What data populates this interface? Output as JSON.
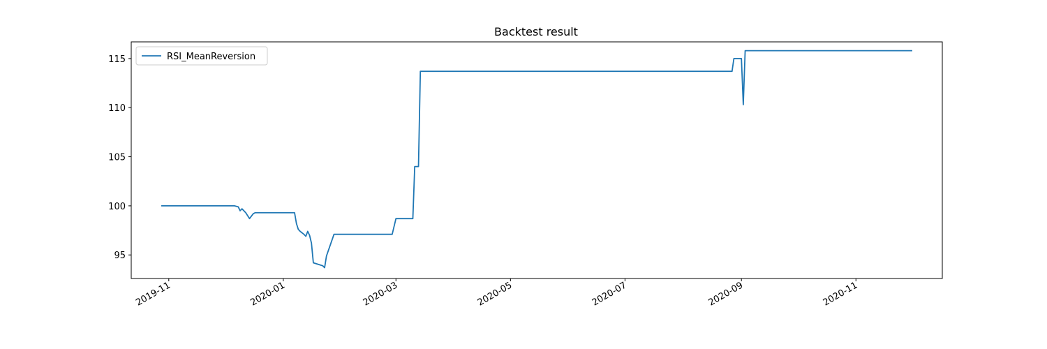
{
  "chart_data": {
    "type": "line",
    "title": "Backtest result",
    "xlabel": "",
    "ylabel": "",
    "x_axis_type": "date",
    "xlim": [
      "2019-10-12",
      "2020-12-17"
    ],
    "ylim": [
      92.6,
      116.7
    ],
    "grid": false,
    "legend_position": "top-left",
    "x_ticks": [
      "2019-11-01",
      "2020-01-01",
      "2020-03-01",
      "2020-05-01",
      "2020-07-01",
      "2020-09-01",
      "2020-11-01"
    ],
    "x_tick_labels": [
      "2019-11",
      "2020-01",
      "2020-03",
      "2020-05",
      "2020-07",
      "2020-09",
      "2020-11"
    ],
    "y_ticks": [
      95,
      100,
      105,
      110,
      115
    ],
    "y_tick_labels": [
      "95",
      "100",
      "105",
      "110",
      "115"
    ],
    "series": [
      {
        "name": "RSI_MeanReversion",
        "color": "#1f77b4",
        "points": [
          [
            "2019-10-28",
            100.0
          ],
          [
            "2019-12-06",
            100.0
          ],
          [
            "2019-12-08",
            99.9
          ],
          [
            "2019-12-09",
            99.5
          ],
          [
            "2019-12-10",
            99.7
          ],
          [
            "2019-12-12",
            99.3
          ],
          [
            "2019-12-14",
            98.7
          ],
          [
            "2019-12-16",
            99.2
          ],
          [
            "2019-12-17",
            99.3
          ],
          [
            "2020-01-07",
            99.3
          ],
          [
            "2020-01-08",
            98.2
          ],
          [
            "2020-01-09",
            97.6
          ],
          [
            "2020-01-10",
            97.4
          ],
          [
            "2020-01-12",
            97.1
          ],
          [
            "2020-01-13",
            96.9
          ],
          [
            "2020-01-14",
            97.4
          ],
          [
            "2020-01-15",
            97.0
          ],
          [
            "2020-01-16",
            96.2
          ],
          [
            "2020-01-17",
            94.2
          ],
          [
            "2020-01-22",
            93.9
          ],
          [
            "2020-01-23",
            93.7
          ],
          [
            "2020-01-24",
            94.9
          ],
          [
            "2020-01-28",
            97.1
          ],
          [
            "2020-02-28",
            97.1
          ],
          [
            "2020-03-01",
            98.7
          ],
          [
            "2020-03-10",
            98.7
          ],
          [
            "2020-03-11",
            104.0
          ],
          [
            "2020-03-13",
            104.0
          ],
          [
            "2020-03-14",
            113.7
          ],
          [
            "2020-08-27",
            113.7
          ],
          [
            "2020-08-28",
            115.0
          ],
          [
            "2020-09-01",
            115.0
          ],
          [
            "2020-09-02",
            110.3
          ],
          [
            "2020-09-03",
            115.8
          ],
          [
            "2020-12-01",
            115.8
          ]
        ]
      }
    ]
  }
}
